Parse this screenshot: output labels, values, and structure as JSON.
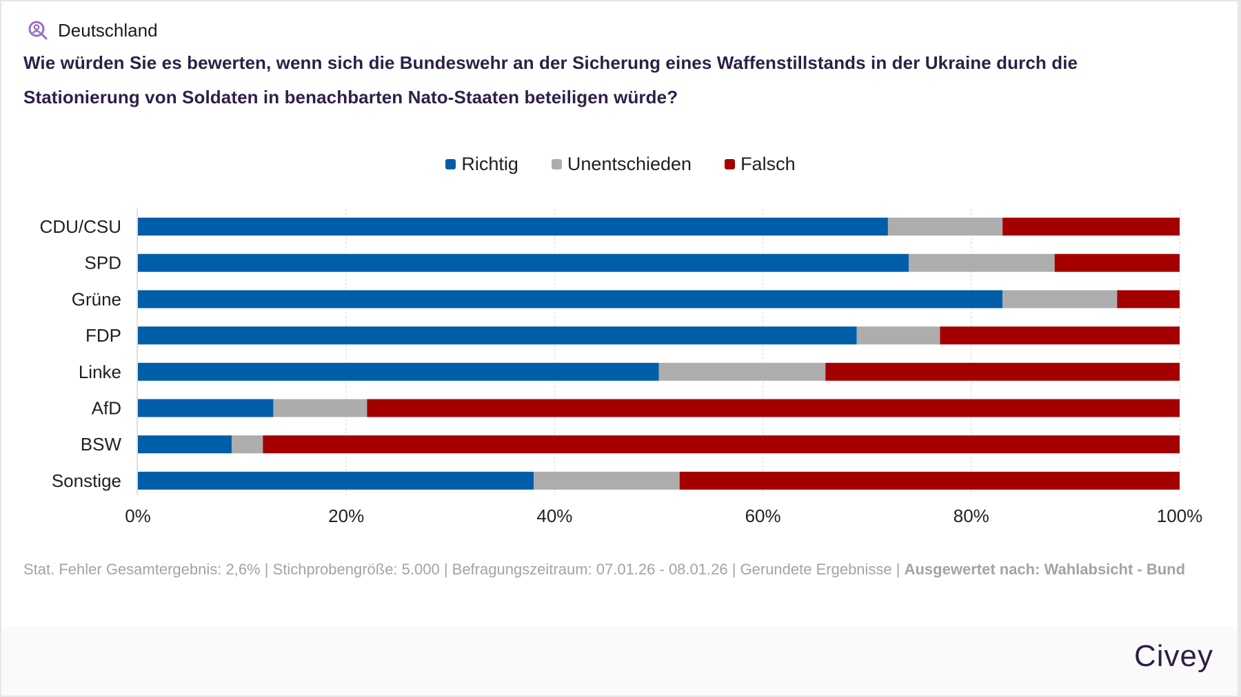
{
  "header": {
    "region_icon": "person-search-icon",
    "region_label": "Deutschland",
    "title": "Wie würden Sie es bewerten, wenn sich die Bundeswehr an der Sicherung eines Waffenstillstands in der Ukraine durch die Stationierung von Soldaten in benachbarten Nato-Staaten beteiligen würde?"
  },
  "colors": {
    "richtig": "#005ea8",
    "unentschieden": "#adadad",
    "falsch": "#a50000",
    "title": "#2e1f47",
    "icon": "#9b6dc6"
  },
  "chart_data": {
    "type": "bar",
    "orientation": "horizontal",
    "stacked": true,
    "title": "Wie würden Sie es bewerten, wenn sich die Bundeswehr an der Sicherung eines Waffenstillstands in der Ukraine durch die Stationierung von Soldaten in benachbarten Nato-Staaten beteiligen würde?",
    "categories": [
      "CDU/CSU",
      "SPD",
      "Grüne",
      "FDP",
      "Linke",
      "AfD",
      "BSW",
      "Sonstige"
    ],
    "series": [
      {
        "name": "Richtig",
        "color": "#005ea8",
        "values": [
          72,
          74,
          83,
          69,
          50,
          13,
          9,
          38
        ]
      },
      {
        "name": "Unentschieden",
        "color": "#adadad",
        "values": [
          11,
          14,
          11,
          8,
          16,
          9,
          3,
          14
        ]
      },
      {
        "name": "Falsch",
        "color": "#a50000",
        "values": [
          17,
          12,
          6,
          23,
          34,
          78,
          88,
          48
        ]
      }
    ],
    "xlabel": "",
    "ylabel": "",
    "xlim": [
      0,
      100
    ],
    "xticks": [
      "0%",
      "20%",
      "40%",
      "60%",
      "80%",
      "100%"
    ],
    "xtick_values": [
      0,
      20,
      40,
      60,
      80,
      100
    ],
    "grid": true,
    "legend_position": "top-center"
  },
  "footer": {
    "notes_plain": "Stat. Fehler Gesamtergebnis: 2,6% | Stichprobengröße: 5.000 | Befragungszeitraum: 07.01.26 - 08.01.26 | Gerundete Ergebnisse | ",
    "notes_bold": "Ausgewertet nach: Wahlabsicht - Bund",
    "logo": "Civey"
  }
}
